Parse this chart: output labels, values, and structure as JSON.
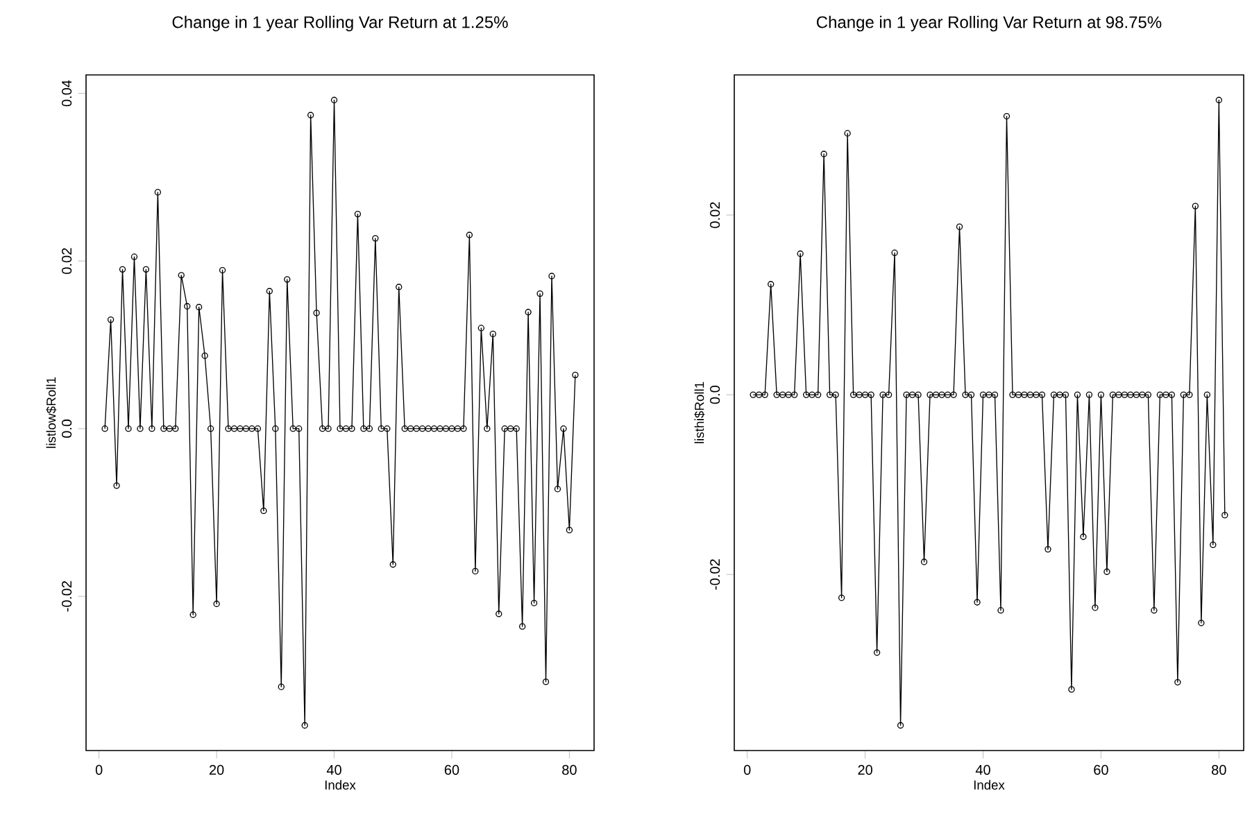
{
  "chart_data": [
    {
      "type": "line",
      "title": "Change in 1 year Rolling Var Return at 1.25%",
      "xlabel": "Index",
      "ylabel": "listlow$Roll1",
      "color": "#000000",
      "marker": "circle",
      "line_style": "solid",
      "x": [
        1,
        2,
        3,
        4,
        5,
        6,
        7,
        8,
        9,
        10,
        11,
        12,
        13,
        14,
        15,
        16,
        17,
        18,
        19,
        20,
        21,
        22,
        23,
        24,
        25,
        26,
        27,
        28,
        29,
        30,
        31,
        32,
        33,
        34,
        35,
        36,
        37,
        38,
        39,
        40,
        41,
        42,
        43,
        44,
        45,
        46,
        47,
        48,
        49,
        50,
        51,
        52,
        53,
        54,
        55,
        56,
        57,
        58,
        59,
        60,
        61,
        62,
        63,
        64,
        65,
        66,
        67,
        68,
        69,
        70,
        71,
        72,
        73,
        74,
        75,
        76,
        77,
        78,
        79,
        80,
        81
      ],
      "values": [
        0,
        0.013,
        -0.0068,
        0.019,
        0,
        0.0205,
        0,
        0.019,
        0,
        0.0282,
        0,
        0,
        0,
        0.0183,
        0.0146,
        -0.0222,
        0.0145,
        0.0087,
        0,
        -0.0209,
        0.0189,
        0,
        0,
        0,
        0,
        0,
        0,
        -0.0098,
        0.0164,
        0,
        -0.0308,
        0.0178,
        0,
        0,
        -0.0354,
        0.0374,
        0.0138,
        0,
        0,
        0.0392,
        0,
        0,
        0,
        0.0256,
        0,
        0,
        0.0227,
        0,
        0,
        -0.0162,
        0.0169,
        0,
        0,
        0,
        0,
        0,
        0,
        0,
        0,
        0,
        0,
        0,
        0.0231,
        -0.017,
        0.012,
        0,
        0.0113,
        -0.0221,
        0,
        0,
        0,
        -0.0236,
        0.0139,
        -0.0208,
        0.0161,
        -0.0302,
        0.0182,
        -0.0072,
        0,
        -0.0121,
        0.0064
      ],
      "xlim": [
        -2.2,
        84.2
      ],
      "ylim": [
        -0.0384,
        0.0422
      ],
      "xticks": [
        0,
        20,
        40,
        60,
        80
      ],
      "yticks": [
        {
          "value": -0.02,
          "label": "-0.02"
        },
        {
          "value": 0,
          "label": "0.0"
        },
        {
          "value": 0.02,
          "label": "0.02"
        },
        {
          "value": 0.04,
          "label": "0.04"
        }
      ]
    },
    {
      "type": "line",
      "title": "Change in 1 year Rolling Var Return at 98.75%",
      "xlabel": "Index",
      "ylabel": "listhi$Roll1",
      "color": "#000000",
      "marker": "circle",
      "line_style": "solid",
      "x": [
        1,
        2,
        3,
        4,
        5,
        6,
        7,
        8,
        9,
        10,
        11,
        12,
        13,
        14,
        15,
        16,
        17,
        18,
        19,
        20,
        21,
        22,
        23,
        24,
        25,
        26,
        27,
        28,
        29,
        30,
        31,
        32,
        33,
        34,
        35,
        36,
        37,
        38,
        39,
        40,
        41,
        42,
        43,
        44,
        45,
        46,
        47,
        48,
        49,
        50,
        51,
        52,
        53,
        54,
        55,
        56,
        57,
        58,
        59,
        60,
        61,
        62,
        63,
        64,
        65,
        66,
        67,
        68,
        69,
        70,
        71,
        72,
        73,
        74,
        75,
        76,
        77,
        78,
        79,
        80,
        81
      ],
      "values": [
        0,
        0,
        0,
        0.0123,
        0,
        0,
        0,
        0,
        0.0157,
        0,
        0,
        0,
        0.0268,
        0,
        0,
        -0.0226,
        0.0291,
        0,
        0,
        0,
        0,
        -0.0287,
        0,
        0,
        0.0158,
        -0.0368,
        0,
        0,
        0,
        -0.0186,
        0,
        0,
        0,
        0,
        0,
        0.0187,
        0,
        0,
        -0.0231,
        0,
        0,
        0,
        -0.024,
        0.031,
        0,
        0,
        0,
        0,
        0,
        0,
        -0.0172,
        0,
        0,
        0,
        -0.0328,
        0,
        -0.0158,
        0,
        -0.0237,
        0,
        -0.0197,
        0,
        0,
        0,
        0,
        0,
        0,
        0,
        -0.024,
        0,
        0,
        0,
        -0.032,
        0,
        0,
        0.021,
        -0.0254,
        0,
        -0.0167,
        0.0328,
        -0.0134
      ],
      "xlim": [
        -2.2,
        84.2
      ],
      "ylim": [
        -0.0396,
        0.0356
      ],
      "xticks": [
        0,
        20,
        40,
        60,
        80
      ],
      "yticks": [
        {
          "value": -0.02,
          "label": "-0.02"
        },
        {
          "value": 0,
          "label": "0.0"
        },
        {
          "value": 0.02,
          "label": "0.02"
        }
      ]
    }
  ]
}
